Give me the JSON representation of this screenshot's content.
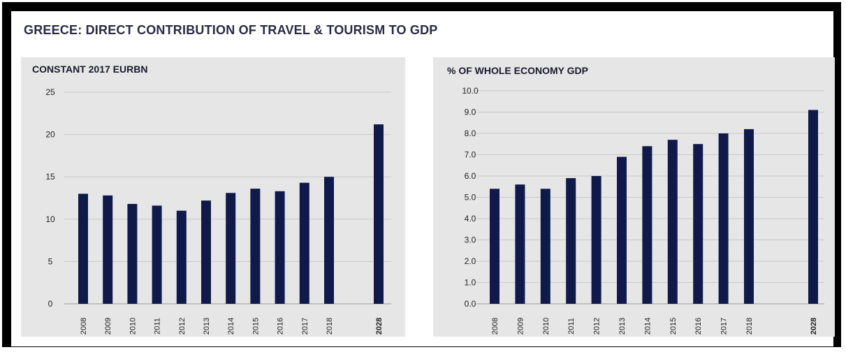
{
  "main_title": "GREECE: DIRECT CONTRIBUTION OF  TRAVEL & TOURISM TO GDP",
  "bar_color": "#0f1a4a",
  "grid_color": "#c8c8c8",
  "chart_data": [
    {
      "type": "bar",
      "title": "CONSTANT 2017 EURBN",
      "categories": [
        "2008",
        "2009",
        "2010",
        "2011",
        "2012",
        "2013",
        "2014",
        "2015",
        "2016",
        "2017",
        "2018",
        "2028"
      ],
      "values": [
        13.0,
        12.8,
        11.8,
        11.6,
        11.0,
        12.2,
        13.1,
        13.6,
        13.3,
        14.3,
        15.0,
        21.2
      ],
      "yticks": [
        "0",
        "5",
        "10",
        "15",
        "20",
        "25"
      ],
      "ylim": [
        0,
        25
      ],
      "grid": true
    },
    {
      "type": "bar",
      "title": "% OF WHOLE ECONOMY GDP",
      "categories": [
        "2008",
        "2009",
        "2010",
        "2011",
        "2012",
        "2013",
        "2014",
        "2015",
        "2016",
        "2017",
        "2018",
        "2028"
      ],
      "values": [
        5.4,
        5.6,
        5.4,
        5.9,
        6.0,
        6.9,
        7.4,
        7.7,
        7.5,
        8.0,
        8.2,
        9.1
      ],
      "yticks": [
        "0.0",
        "1.0",
        "2.0",
        "3.0",
        "4.0",
        "5.0",
        "6.0",
        "7.0",
        "8.0",
        "9.0",
        "10.0"
      ],
      "ylim": [
        0,
        10
      ],
      "grid": true
    }
  ]
}
